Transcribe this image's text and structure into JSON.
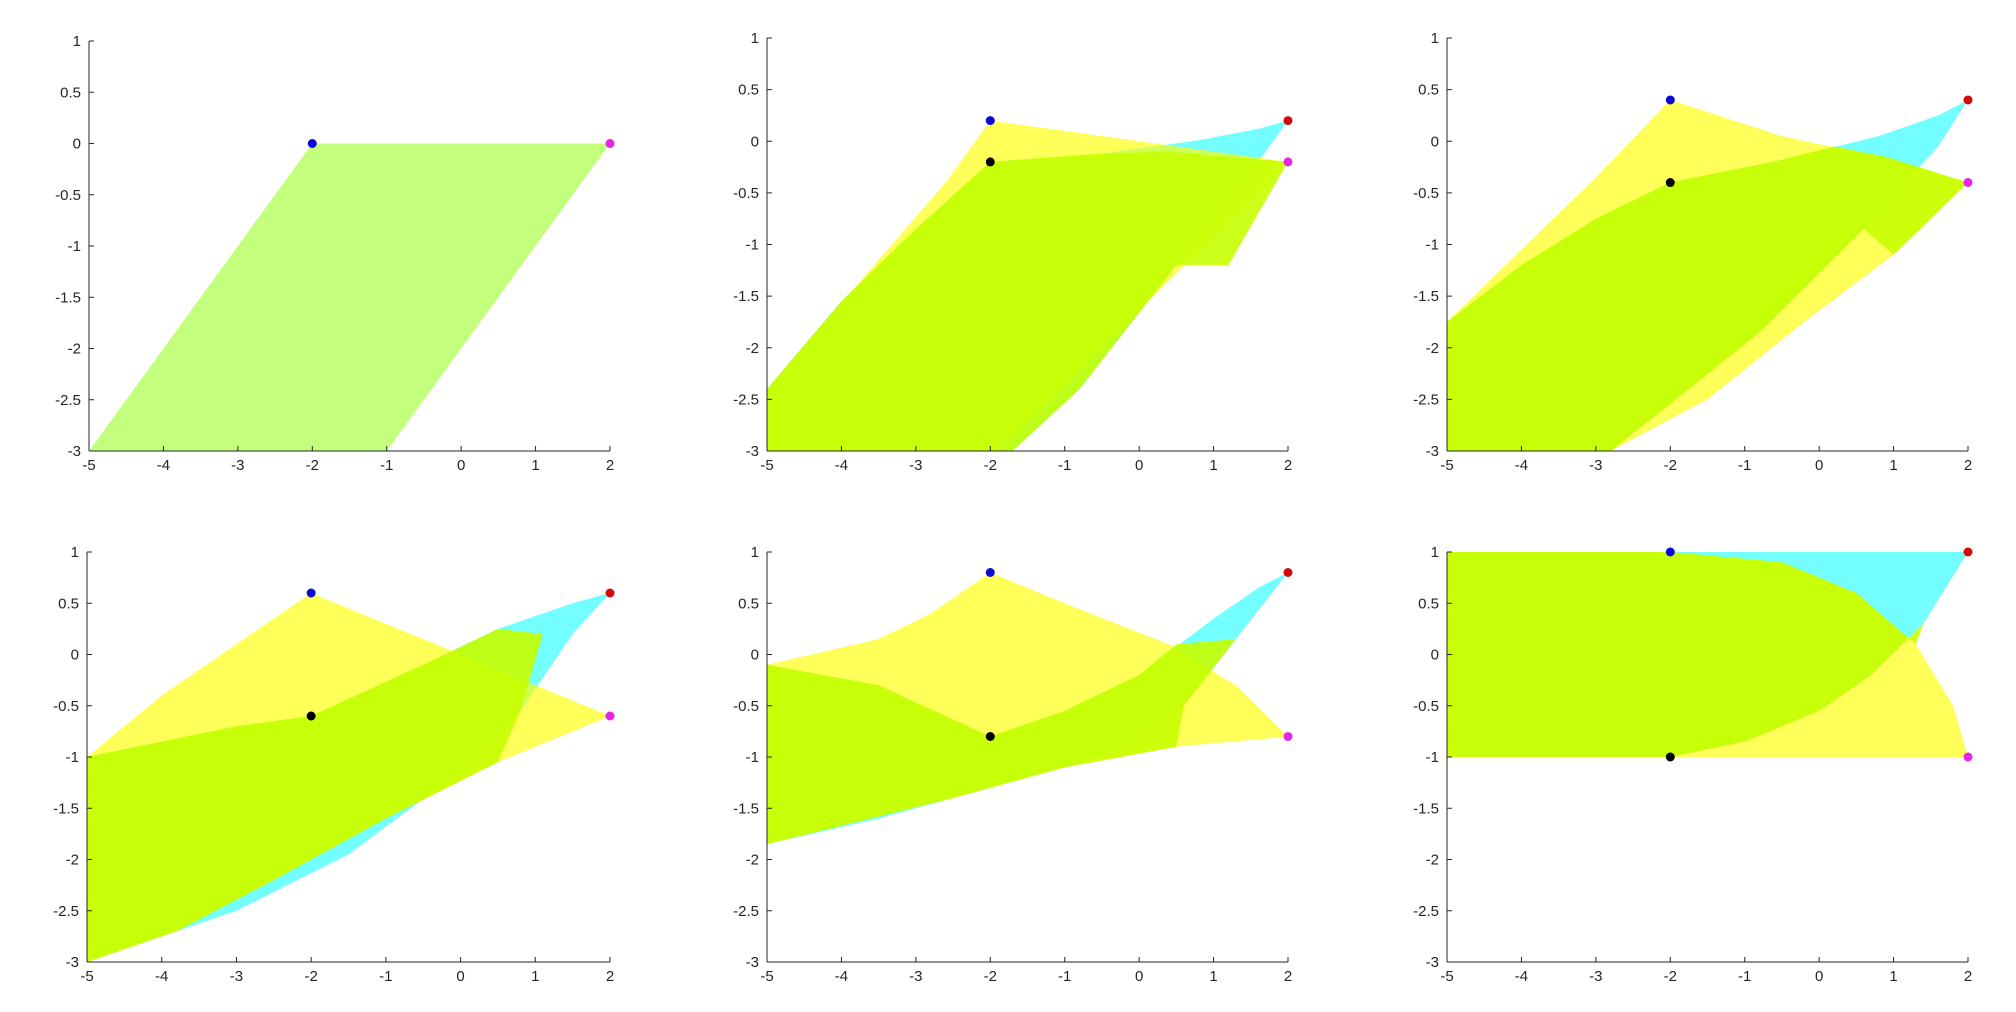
{
  "colors": {
    "overlap": "#c6ff00",
    "yellow_region": "#ffff00",
    "cyan_region": "#00ffff",
    "panel1_fill": "#bdff6e",
    "point_blue": "#0a0ad2",
    "point_red": "#d20a0a",
    "point_magenta": "#e625e6",
    "point_black": "#000000"
  },
  "chart_data": [
    {
      "type": "area",
      "xlim": [
        -5,
        2
      ],
      "ylim": [
        -3,
        1
      ],
      "xticks": [
        "-5",
        "-4",
        "-3",
        "-2",
        "-1",
        "0",
        "1",
        "2"
      ],
      "yticks": [
        "1",
        "0.5",
        "0",
        "-0.5",
        "-1",
        "-1.5",
        "-2",
        "-2.5",
        "-3"
      ],
      "regions": [
        {
          "color": "panel1_fill",
          "points": [
            [
              -2,
              0
            ],
            [
              2,
              0
            ],
            [
              -1,
              -3
            ],
            [
              -5,
              -3
            ]
          ]
        }
      ],
      "points": [
        {
          "x": -2,
          "y": 0,
          "color": "point_blue"
        },
        {
          "x": 2,
          "y": 0,
          "color": "point_magenta"
        }
      ]
    },
    {
      "type": "area",
      "xlim": [
        -5,
        2
      ],
      "ylim": [
        -3,
        1
      ],
      "xticks": [
        "-5",
        "-4",
        "-3",
        "-2",
        "-1",
        "0",
        "1",
        "2"
      ],
      "yticks": [
        "1",
        "0.5",
        "0",
        "-0.5",
        "-1",
        "-1.5",
        "-2",
        "-2.5",
        "-3"
      ],
      "regions": [
        {
          "color": "cyan_region",
          "points": [
            [
              -2,
              -0.2
            ],
            [
              -0.5,
              -0.12
            ],
            [
              0.8,
              0.01
            ],
            [
              1.6,
              0.12
            ],
            [
              2,
              0.2
            ],
            [
              1.7,
              -0.1
            ],
            [
              0.5,
              -1.2
            ],
            [
              -0.8,
              -2.4
            ],
            [
              -1.7,
              -3
            ],
            [
              -5,
              -3
            ],
            [
              -5,
              -2.4
            ],
            [
              -4,
              -1.55
            ],
            [
              -3,
              -0.85
            ]
          ]
        },
        {
          "color": "yellow_region",
          "points": [
            [
              -2,
              0.2
            ],
            [
              2,
              -0.2
            ],
            [
              -1.9,
              -3
            ],
            [
              -5,
              -3
            ],
            [
              -5,
              -2.4
            ],
            [
              -3.8,
              -1.4
            ],
            [
              -2.6,
              -0.4
            ]
          ]
        },
        {
          "color": "overlap",
          "points": [
            [
              -2,
              -0.2
            ],
            [
              -0.5,
              -0.12
            ],
            [
              0.4,
              -0.1
            ],
            [
              2,
              -0.2
            ],
            [
              1.2,
              -1.2
            ],
            [
              0.5,
              -1.2
            ],
            [
              -0.8,
              -2.4
            ],
            [
              -1.7,
              -3
            ],
            [
              -5,
              -3
            ],
            [
              -5,
              -2.4
            ],
            [
              -4,
              -1.55
            ],
            [
              -3,
              -0.85
            ]
          ]
        }
      ],
      "points": [
        {
          "x": -2,
          "y": 0.2,
          "color": "point_blue"
        },
        {
          "x": 2,
          "y": 0.2,
          "color": "point_red"
        },
        {
          "x": -2,
          "y": -0.2,
          "color": "point_black"
        },
        {
          "x": 2,
          "y": -0.2,
          "color": "point_magenta"
        }
      ]
    },
    {
      "type": "area",
      "xlim": [
        -5,
        2
      ],
      "ylim": [
        -3,
        1
      ],
      "xticks": [
        "-5",
        "-4",
        "-3",
        "-2",
        "-1",
        "0",
        "1",
        "2"
      ],
      "yticks": [
        "1",
        "0.5",
        "0",
        "-0.5",
        "-1",
        "-1.5",
        "-2",
        "-2.5",
        "-3"
      ],
      "regions": [
        {
          "color": "cyan_region",
          "points": [
            [
              -2,
              -0.4
            ],
            [
              -0.5,
              -0.18
            ],
            [
              0.8,
              0.05
            ],
            [
              1.6,
              0.25
            ],
            [
              2,
              0.4
            ],
            [
              1.6,
              -0.05
            ],
            [
              0.6,
              -0.85
            ],
            [
              -0.8,
              -1.85
            ],
            [
              -2.1,
              -2.6
            ],
            [
              -2.8,
              -3
            ],
            [
              -5,
              -3
            ],
            [
              -5,
              -1.75
            ],
            [
              -4,
              -1.2
            ],
            [
              -3,
              -0.75
            ]
          ]
        },
        {
          "color": "yellow_region",
          "points": [
            [
              -2,
              0.4
            ],
            [
              -0.5,
              0.05
            ],
            [
              0.8,
              -0.15
            ],
            [
              2,
              -0.4
            ],
            [
              1,
              -1.1
            ],
            [
              -0.2,
              -1.75
            ],
            [
              -1.5,
              -2.5
            ],
            [
              -2.8,
              -3
            ],
            [
              -5,
              -3
            ],
            [
              -5,
              -1.75
            ],
            [
              -4,
              -1.05
            ],
            [
              -3,
              -0.35
            ]
          ]
        },
        {
          "color": "overlap",
          "points": [
            [
              -2,
              -0.4
            ],
            [
              -0.5,
              -0.18
            ],
            [
              0.2,
              -0.05
            ],
            [
              0.9,
              -0.15
            ],
            [
              2,
              -0.4
            ],
            [
              1,
              -1.1
            ],
            [
              0.6,
              -0.85
            ],
            [
              -0.8,
              -1.85
            ],
            [
              -2.1,
              -2.6
            ],
            [
              -2.8,
              -3
            ],
            [
              -5,
              -3
            ],
            [
              -5,
              -1.75
            ],
            [
              -4,
              -1.2
            ],
            [
              -3,
              -0.75
            ]
          ]
        }
      ],
      "points": [
        {
          "x": -2,
          "y": 0.4,
          "color": "point_blue"
        },
        {
          "x": 2,
          "y": 0.4,
          "color": "point_red"
        },
        {
          "x": -2,
          "y": -0.4,
          "color": "point_black"
        },
        {
          "x": 2,
          "y": -0.4,
          "color": "point_magenta"
        }
      ]
    },
    {
      "type": "area",
      "xlim": [
        -5,
        2
      ],
      "ylim": [
        -3,
        1
      ],
      "xticks": [
        "-5",
        "-4",
        "-3",
        "-2",
        "-1",
        "0",
        "1",
        "2"
      ],
      "yticks": [
        "1",
        "0.5",
        "0",
        "-0.5",
        "-1",
        "-1.5",
        "-2",
        "-2.5",
        "-3"
      ],
      "regions": [
        {
          "color": "cyan_region",
          "points": [
            [
              -2,
              -0.6
            ],
            [
              -0.5,
              -0.1
            ],
            [
              0.5,
              0.25
            ],
            [
              1.5,
              0.5
            ],
            [
              2,
              0.6
            ],
            [
              1.5,
              0.2
            ],
            [
              0.8,
              -0.55
            ],
            [
              -0.3,
              -1.3
            ],
            [
              -1.5,
              -1.95
            ],
            [
              -3,
              -2.5
            ],
            [
              -5,
              -3
            ],
            [
              -5,
              -1
            ],
            [
              -4,
              -0.85
            ],
            [
              -3,
              -0.7
            ]
          ]
        },
        {
          "color": "yellow_region",
          "points": [
            [
              -2,
              0.6
            ],
            [
              -1,
              0.3
            ],
            [
              0,
              0
            ],
            [
              1,
              -0.3
            ],
            [
              2,
              -0.6
            ],
            [
              0.5,
              -1.05
            ],
            [
              -1,
              -1.6
            ],
            [
              -2.5,
              -2.2
            ],
            [
              -3.8,
              -2.7
            ],
            [
              -5,
              -3
            ],
            [
              -5,
              -1
            ],
            [
              -4,
              -0.4
            ],
            [
              -3,
              0.1
            ]
          ]
        },
        {
          "color": "overlap",
          "points": [
            [
              -2,
              -0.6
            ],
            [
              -0.5,
              -0.1
            ],
            [
              0.5,
              0.25
            ],
            [
              1.1,
              0.2
            ],
            [
              0.8,
              -0.55
            ],
            [
              0.5,
              -1.05
            ],
            [
              -1,
              -1.6
            ],
            [
              -2.5,
              -2.2
            ],
            [
              -3.8,
              -2.7
            ],
            [
              -5,
              -3
            ],
            [
              -5,
              -1
            ],
            [
              -4,
              -0.85
            ],
            [
              -3,
              -0.7
            ]
          ]
        }
      ],
      "points": [
        {
          "x": -2,
          "y": 0.6,
          "color": "point_blue"
        },
        {
          "x": 2,
          "y": 0.6,
          "color": "point_red"
        },
        {
          "x": -2,
          "y": -0.6,
          "color": "point_black"
        },
        {
          "x": 2,
          "y": -0.6,
          "color": "point_magenta"
        }
      ]
    },
    {
      "type": "area",
      "xlim": [
        -5,
        2
      ],
      "ylim": [
        -3,
        1
      ],
      "xticks": [
        "-5",
        "-4",
        "-3",
        "-2",
        "-1",
        "0",
        "1",
        "2"
      ],
      "yticks": [
        "1",
        "0.5",
        "0",
        "-0.5",
        "-1",
        "-1.5",
        "-2",
        "-2.5",
        "-3"
      ],
      "regions": [
        {
          "color": "cyan_region",
          "points": [
            [
              -2,
              -0.8
            ],
            [
              -1,
              -0.55
            ],
            [
              0,
              -0.2
            ],
            [
              1,
              0.35
            ],
            [
              1.6,
              0.65
            ],
            [
              2,
              0.8
            ],
            [
              1.3,
              0.15
            ],
            [
              0.6,
              -0.5
            ],
            [
              -0.5,
              -1
            ],
            [
              -2,
              -1.3
            ],
            [
              -3.5,
              -1.6
            ],
            [
              -5,
              -1.85
            ],
            [
              -5,
              -0.1
            ],
            [
              -3.5,
              -0.3
            ]
          ]
        },
        {
          "color": "yellow_region",
          "points": [
            [
              -2,
              0.8
            ],
            [
              -1,
              0.5
            ],
            [
              0.4,
              0.1
            ],
            [
              1.3,
              -0.3
            ],
            [
              2,
              -0.8
            ],
            [
              0.5,
              -0.9
            ],
            [
              -1,
              -1.1
            ],
            [
              -2.5,
              -1.4
            ],
            [
              -5,
              -1.85
            ],
            [
              -5,
              -0.1
            ],
            [
              -3.5,
              0.15
            ],
            [
              -2.8,
              0.4
            ]
          ]
        },
        {
          "color": "overlap",
          "points": [
            [
              -2,
              -0.8
            ],
            [
              -1,
              -0.55
            ],
            [
              0,
              -0.2
            ],
            [
              0.5,
              0.1
            ],
            [
              1.3,
              0.15
            ],
            [
              0.6,
              -0.5
            ],
            [
              0.5,
              -0.9
            ],
            [
              -1,
              -1.1
            ],
            [
              -2.5,
              -1.4
            ],
            [
              -5,
              -1.85
            ],
            [
              -5,
              -0.1
            ],
            [
              -3.5,
              -0.3
            ]
          ]
        }
      ],
      "points": [
        {
          "x": -2,
          "y": 0.8,
          "color": "point_blue"
        },
        {
          "x": 2,
          "y": 0.8,
          "color": "point_red"
        },
        {
          "x": -2,
          "y": -0.8,
          "color": "point_black"
        },
        {
          "x": 2,
          "y": -0.8,
          "color": "point_magenta"
        }
      ]
    },
    {
      "type": "area",
      "xlim": [
        -5,
        2
      ],
      "ylim": [
        -3,
        1
      ],
      "xticks": [
        "-5",
        "-4",
        "-3",
        "-2",
        "-1",
        "0",
        "1",
        "2"
      ],
      "yticks": [
        "1",
        "0.5",
        "0",
        "-0.5",
        "-1",
        "-1.5",
        "-2",
        "-2.5",
        "-3"
      ],
      "regions": [
        {
          "color": "cyan_region",
          "points": [
            [
              -5,
              1
            ],
            [
              2,
              1
            ],
            [
              1.4,
              0.3
            ],
            [
              0.7,
              -0.2
            ],
            [
              0,
              -0.55
            ],
            [
              -1,
              -0.85
            ],
            [
              -2,
              -1
            ],
            [
              -5,
              -1
            ]
          ]
        },
        {
          "color": "yellow_region",
          "points": [
            [
              -2,
              1
            ],
            [
              -0.5,
              0.9
            ],
            [
              0.5,
              0.6
            ],
            [
              1.3,
              0.1
            ],
            [
              1.8,
              -0.5
            ],
            [
              2,
              -1
            ],
            [
              -5,
              -1
            ],
            [
              -5,
              1
            ]
          ]
        },
        {
          "color": "overlap",
          "points": [
            [
              -5,
              1
            ],
            [
              -2,
              1
            ],
            [
              -0.5,
              0.9
            ],
            [
              0.5,
              0.6
            ],
            [
              1.3,
              0.1
            ],
            [
              1.4,
              0.3
            ],
            [
              0.7,
              -0.2
            ],
            [
              0,
              -0.55
            ],
            [
              -1,
              -0.85
            ],
            [
              -2,
              -1
            ],
            [
              -5,
              -1
            ]
          ]
        }
      ],
      "points": [
        {
          "x": -2,
          "y": 1,
          "color": "point_blue"
        },
        {
          "x": 2,
          "y": 1,
          "color": "point_red"
        },
        {
          "x": -2,
          "y": -1,
          "color": "point_black"
        },
        {
          "x": 2,
          "y": -1,
          "color": "point_magenta"
        }
      ]
    }
  ]
}
